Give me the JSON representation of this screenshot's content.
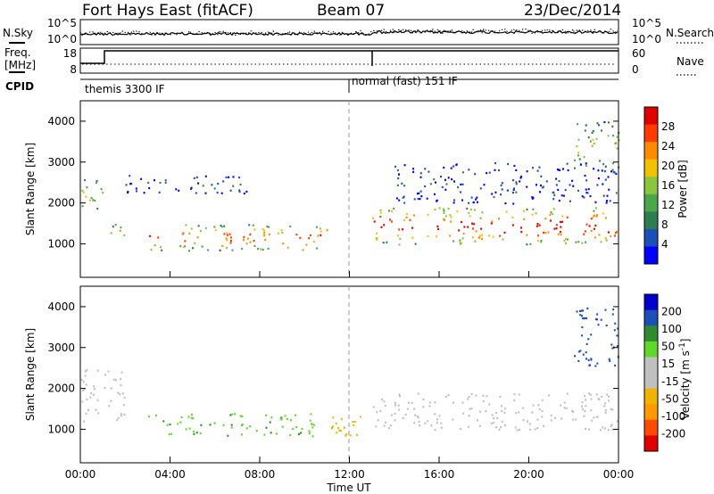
{
  "header": {
    "station": "Fort Hays East (fitACF)",
    "beam": "Beam 07",
    "date": "23/Dec/2014"
  },
  "noise_panel": {
    "left_label": "N.Sky",
    "right_label": "N.Search",
    "left_ticks": [
      "10^5",
      "10^0"
    ],
    "right_ticks": [
      "10^5",
      "10^0"
    ]
  },
  "freq_panel": {
    "left_label_1": "Freq.",
    "left_label_2": "[MHz]",
    "right_label": "Nave",
    "left_ticks": [
      "18",
      "8"
    ],
    "right_ticks": [
      "60",
      "0"
    ]
  },
  "cpid_panel": {
    "label": "CPID",
    "modes": [
      {
        "start_hour": 0,
        "end_hour": 11.95,
        "name": "themis 3300 IF"
      },
      {
        "start_hour": 11.95,
        "end_hour": 24,
        "name": "normal (fast) 151 IF"
      }
    ]
  },
  "power_panel": {
    "ylabel": "Slant Range [km]",
    "cbar_label": "Power [dB]",
    "yticks": [
      1000,
      2000,
      3000,
      4000
    ],
    "cbar_ticks": [
      "28",
      "24",
      "20",
      "16",
      "12",
      "8",
      "4"
    ]
  },
  "velocity_panel": {
    "ylabel": "Slant Range [km]",
    "cbar_label": "Velocity [m s",
    "cbar_label_sup": "-1",
    "cbar_label_end": "]",
    "yticks": [
      1000,
      2000,
      3000,
      4000
    ],
    "cbar_ticks": [
      "200",
      "100",
      "50",
      "15",
      "-15",
      "-50",
      "-100",
      "-200"
    ]
  },
  "xaxis": {
    "label": "Time UT",
    "ticks": [
      "00:00",
      "04:00",
      "08:00",
      "12:00",
      "16:00",
      "20:00",
      "00:00"
    ]
  },
  "colors": {
    "power_scale": [
      "#0000ff",
      "#1c4fb8",
      "#2e7d4f",
      "#4aa84a",
      "#8cc63f",
      "#f2c200",
      "#ff8c00",
      "#ff3b00",
      "#e00000"
    ],
    "velocity_scale": [
      "#e00000",
      "#ff4b00",
      "#ff9900",
      "#f2b200",
      "#c0c0c0",
      "#c0c0c0",
      "#5fd82a",
      "#2e8b2e",
      "#1c4fb8",
      "#0000cc"
    ]
  },
  "chart_data": {
    "type": "heatmap",
    "title": "Fort Hays East (fitACF)",
    "x_range_hours": [
      0,
      24
    ],
    "y_range_km": [
      180,
      4500
    ],
    "xlabel": "Time UT",
    "ylabel": "Slant Range [km]",
    "power_echo_regions": [
      {
        "t0": 0.0,
        "t1": 1.0,
        "r0": 1700,
        "r1": 2600,
        "level": 0.35
      },
      {
        "t0": 1.0,
        "t1": 2.0,
        "r0": 1150,
        "r1": 1500,
        "level": 0.45
      },
      {
        "t0": 2.0,
        "t1": 8.0,
        "r0": 2250,
        "r1": 2700,
        "level": 0.15
      },
      {
        "t0": 3.0,
        "t1": 11.0,
        "r0": 850,
        "r1": 1500,
        "level": 0.6
      },
      {
        "t0": 13.0,
        "t1": 24.0,
        "r0": 1000,
        "r1": 1900,
        "level": 0.7
      },
      {
        "t0": 14.0,
        "t1": 24.0,
        "r0": 2000,
        "r1": 3000,
        "level": 0.1
      },
      {
        "t0": 22.0,
        "t1": 24.0,
        "r0": 2800,
        "r1": 4000,
        "level": 0.4
      }
    ],
    "velocity_echo_regions": [
      {
        "t0": 0.0,
        "t1": 2.0,
        "r0": 1200,
        "r1": 2500,
        "v": 0
      },
      {
        "t0": 3.0,
        "t1": 10.5,
        "r0": 850,
        "r1": 1400,
        "v": 40
      },
      {
        "t0": 10.5,
        "t1": 12.5,
        "r0": 850,
        "r1": 1400,
        "v": -40
      },
      {
        "t0": 13.0,
        "t1": 24.0,
        "r0": 1000,
        "r1": 1900,
        "v": 0
      },
      {
        "t0": 22.0,
        "t1": 24.0,
        "r0": 2500,
        "r1": 4000,
        "v": 180
      }
    ]
  }
}
